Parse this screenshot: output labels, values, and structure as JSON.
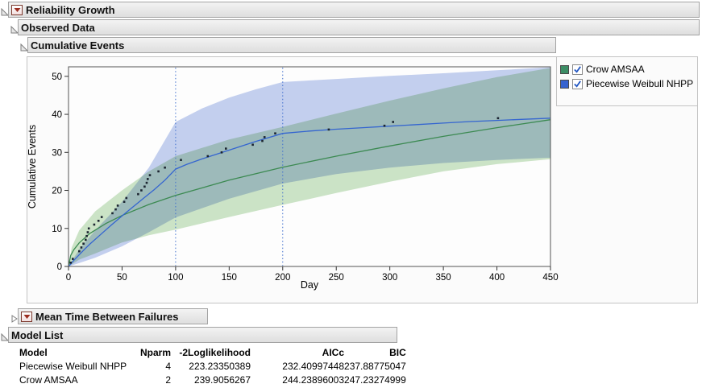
{
  "sections": {
    "reliability_growth": {
      "title": "Reliability Growth"
    },
    "observed_data": {
      "title": "Observed Data"
    },
    "cumulative_events": {
      "title": "Cumulative Events"
    },
    "mtbf": {
      "title": "Mean Time Between Failures"
    },
    "model_list": {
      "title": "Model List"
    }
  },
  "legend": {
    "items": [
      {
        "label": "Crow AMSAA",
        "color": "#3d8e66",
        "checked": true
      },
      {
        "label": "Piecewise Weibull NHPP",
        "color": "#3763cf",
        "checked": true
      }
    ]
  },
  "chart_data": {
    "type": "line",
    "title": "Cumulative Events",
    "xlabel": "Day",
    "ylabel": "Cumulative Events",
    "xlim": [
      0,
      450
    ],
    "ylim": [
      0,
      52.5
    ],
    "xticks": [
      0,
      50,
      100,
      150,
      200,
      250,
      300,
      350,
      400,
      450
    ],
    "yticks": [
      0,
      10,
      20,
      30,
      40,
      50
    ],
    "grid": false,
    "legend_position": "right-top",
    "phase_change_lines_x": [
      100,
      200
    ],
    "phase_line_color": "#3f6fce",
    "point_color": "#1b2430",
    "observed_points": [
      [
        2,
        1
      ],
      [
        4,
        2
      ],
      [
        10,
        4
      ],
      [
        12,
        5
      ],
      [
        14,
        6
      ],
      [
        16,
        7
      ],
      [
        17,
        8
      ],
      [
        18,
        9
      ],
      [
        19,
        10
      ],
      [
        24,
        11
      ],
      [
        28,
        12
      ],
      [
        31,
        13
      ],
      [
        41,
        14
      ],
      [
        44,
        15
      ],
      [
        46,
        16
      ],
      [
        52,
        17
      ],
      [
        54,
        18
      ],
      [
        65,
        19
      ],
      [
        68,
        20
      ],
      [
        71,
        21
      ],
      [
        73,
        22
      ],
      [
        74,
        23
      ],
      [
        76,
        24
      ],
      [
        84,
        25
      ],
      [
        90,
        26
      ],
      [
        105,
        28
      ],
      [
        130,
        29
      ],
      [
        143,
        30
      ],
      [
        147,
        31
      ],
      [
        172,
        32
      ],
      [
        181,
        33
      ],
      [
        183,
        34
      ],
      [
        193,
        35
      ],
      [
        243,
        36
      ],
      [
        295,
        37
      ],
      [
        303,
        38
      ],
      [
        401,
        39
      ]
    ],
    "series": [
      {
        "name": "Crow AMSAA",
        "line_color": "#3c8a52",
        "band_color": "#cde5c8",
        "line": [
          [
            0,
            0
          ],
          [
            2,
            2.9
          ],
          [
            5,
            4.4
          ],
          [
            10,
            6.2
          ],
          [
            20,
            8.7
          ],
          [
            35,
            11.3
          ],
          [
            50,
            13.4
          ],
          [
            75,
            16.3
          ],
          [
            100,
            18.7
          ],
          [
            150,
            22.7
          ],
          [
            200,
            26.1
          ],
          [
            250,
            29.0
          ],
          [
            300,
            31.7
          ],
          [
            350,
            34.2
          ],
          [
            400,
            36.5
          ],
          [
            450,
            38.6
          ]
        ],
        "band_upper": [
          [
            0,
            0
          ],
          [
            3,
            5
          ],
          [
            10,
            9.5
          ],
          [
            25,
            14.5
          ],
          [
            50,
            20
          ],
          [
            75,
            25
          ],
          [
            100,
            29
          ],
          [
            150,
            33.4
          ],
          [
            200,
            36.7
          ],
          [
            250,
            40.2
          ],
          [
            300,
            43.6
          ],
          [
            350,
            46.8
          ],
          [
            400,
            49.8
          ],
          [
            450,
            52.2
          ]
        ],
        "band_lower": [
          [
            0,
            0
          ],
          [
            10,
            1.8
          ],
          [
            25,
            3.4
          ],
          [
            50,
            6.3
          ],
          [
            75,
            8.2
          ],
          [
            100,
            9.7
          ],
          [
            150,
            13
          ],
          [
            200,
            16.2
          ],
          [
            250,
            19.3
          ],
          [
            300,
            22.3
          ],
          [
            350,
            25
          ],
          [
            400,
            26.9
          ],
          [
            450,
            28.2
          ]
        ]
      },
      {
        "name": "Piecewise Weibull NHPP",
        "line_color": "#3465d0",
        "band_color": "#c5d1f0",
        "line": [
          [
            0,
            0
          ],
          [
            5,
            1.6
          ],
          [
            10,
            3.1
          ],
          [
            15,
            4.5
          ],
          [
            20,
            5.9
          ],
          [
            30,
            8.4
          ],
          [
            40,
            10.9
          ],
          [
            50,
            13.3
          ],
          [
            60,
            15.6
          ],
          [
            70,
            17.9
          ],
          [
            80,
            20.2
          ],
          [
            90,
            22.7
          ],
          [
            100,
            25.6
          ],
          [
            110,
            26.8
          ],
          [
            125,
            28.3
          ],
          [
            150,
            30.6
          ],
          [
            175,
            32.9
          ],
          [
            200,
            35
          ],
          [
            225,
            35.6
          ],
          [
            250,
            36.1
          ],
          [
            275,
            36.5
          ],
          [
            300,
            36.9
          ],
          [
            325,
            37.3
          ],
          [
            350,
            37.7
          ],
          [
            375,
            38.1
          ],
          [
            400,
            38.4
          ],
          [
            425,
            38.7
          ],
          [
            450,
            39
          ]
        ],
        "band_upper": [
          [
            0,
            0
          ],
          [
            10,
            4.5
          ],
          [
            25,
            9.5
          ],
          [
            50,
            17
          ],
          [
            75,
            26
          ],
          [
            100,
            38
          ],
          [
            125,
            41.6
          ],
          [
            150,
            44.4
          ],
          [
            175,
            46.6
          ],
          [
            200,
            48.5
          ],
          [
            250,
            49.3
          ],
          [
            300,
            50.1
          ],
          [
            350,
            50.8
          ],
          [
            400,
            51.6
          ],
          [
            450,
            52.4
          ]
        ],
        "band_lower": [
          [
            0,
            0
          ],
          [
            10,
            0.9
          ],
          [
            25,
            2.3
          ],
          [
            50,
            5.3
          ],
          [
            75,
            9
          ],
          [
            100,
            12.9
          ],
          [
            150,
            17.8
          ],
          [
            200,
            21.8
          ],
          [
            250,
            24.3
          ],
          [
            300,
            26
          ],
          [
            350,
            27.2
          ],
          [
            400,
            28
          ],
          [
            450,
            28.6
          ]
        ]
      }
    ]
  },
  "model_table": {
    "columns": [
      "Model",
      "Nparm",
      "-2Loglikelihood",
      "AICc",
      "BIC"
    ],
    "rows": [
      [
        "Piecewise Weibull NHPP",
        "4",
        "223.23350389",
        "232.40997448",
        "237.88775047"
      ],
      [
        "Crow AMSAA",
        "2",
        "239.9056267",
        "244.23896003",
        "247.23274999"
      ]
    ]
  }
}
